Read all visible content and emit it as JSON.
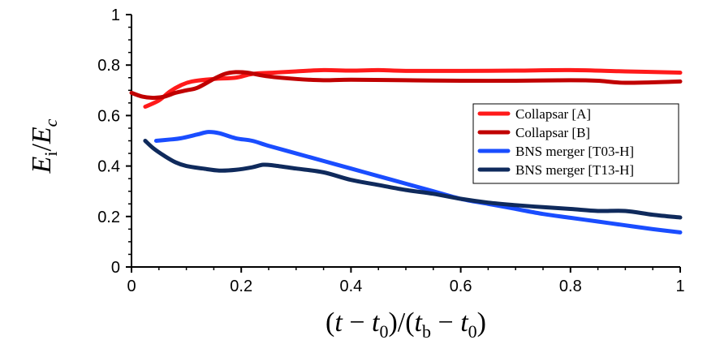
{
  "chart_data": {
    "type": "line",
    "title": "",
    "xlabel": "(t − t0)/(tb − t0)",
    "ylabel": "Ei/Ec",
    "xlim": [
      0,
      1
    ],
    "ylim": [
      0,
      1
    ],
    "xticks": [
      0,
      0.2,
      0.4,
      0.6,
      0.8,
      1
    ],
    "yticks": [
      0,
      0.2,
      0.4,
      0.6,
      0.8,
      1
    ],
    "xtick_labels": [
      "0",
      "0.2",
      "0.4",
      "0.6",
      "0.8",
      "1"
    ],
    "ytick_labels": [
      "0",
      "0.2",
      "0.4",
      "0.6",
      "0.8",
      "1"
    ],
    "grid": false,
    "legend_position": "right",
    "series": [
      {
        "name": "Collapsar [A]",
        "color": "#ff1a1a",
        "x": [
          0.025,
          0.05,
          0.07,
          0.09,
          0.11,
          0.15,
          0.19,
          0.22,
          0.26,
          0.3,
          0.35,
          0.4,
          0.45,
          0.5,
          0.6,
          0.7,
          0.8,
          0.9,
          1.0
        ],
        "y": [
          0.635,
          0.66,
          0.695,
          0.72,
          0.735,
          0.745,
          0.75,
          0.765,
          0.77,
          0.775,
          0.78,
          0.778,
          0.78,
          0.777,
          0.777,
          0.778,
          0.78,
          0.775,
          0.77
        ]
      },
      {
        "name": "Collapsar [B]",
        "color": "#c00000",
        "x": [
          0.0,
          0.02,
          0.04,
          0.06,
          0.08,
          0.1,
          0.12,
          0.15,
          0.17,
          0.19,
          0.21,
          0.25,
          0.3,
          0.35,
          0.4,
          0.5,
          0.6,
          0.7,
          0.8,
          0.85,
          0.9,
          1.0
        ],
        "y": [
          0.69,
          0.675,
          0.67,
          0.675,
          0.69,
          0.7,
          0.71,
          0.745,
          0.765,
          0.772,
          0.77,
          0.755,
          0.745,
          0.74,
          0.742,
          0.74,
          0.738,
          0.738,
          0.74,
          0.738,
          0.73,
          0.735
        ]
      },
      {
        "name": "BNS merger [T03-H]",
        "color": "#1a4dff",
        "x": [
          0.045,
          0.07,
          0.09,
          0.12,
          0.14,
          0.16,
          0.19,
          0.22,
          0.25,
          0.3,
          0.35,
          0.4,
          0.45,
          0.5,
          0.55,
          0.6,
          0.65,
          0.7,
          0.75,
          0.8,
          0.85,
          0.9,
          0.95,
          1.0
        ],
        "y": [
          0.5,
          0.505,
          0.51,
          0.525,
          0.535,
          0.53,
          0.51,
          0.5,
          0.48,
          0.45,
          0.42,
          0.39,
          0.36,
          0.33,
          0.3,
          0.27,
          0.25,
          0.23,
          0.21,
          0.195,
          0.18,
          0.165,
          0.15,
          0.137
        ]
      },
      {
        "name": "BNS merger [T13-H]",
        "color": "#0f2a5c",
        "x": [
          0.025,
          0.04,
          0.06,
          0.08,
          0.1,
          0.13,
          0.16,
          0.19,
          0.22,
          0.24,
          0.26,
          0.3,
          0.35,
          0.4,
          0.45,
          0.5,
          0.55,
          0.6,
          0.65,
          0.7,
          0.75,
          0.8,
          0.85,
          0.9,
          0.95,
          1.0
        ],
        "y": [
          0.5,
          0.47,
          0.44,
          0.415,
          0.4,
          0.39,
          0.382,
          0.385,
          0.395,
          0.405,
          0.402,
          0.39,
          0.375,
          0.345,
          0.325,
          0.305,
          0.29,
          0.27,
          0.255,
          0.245,
          0.237,
          0.23,
          0.222,
          0.222,
          0.207,
          0.196
        ]
      }
    ]
  }
}
